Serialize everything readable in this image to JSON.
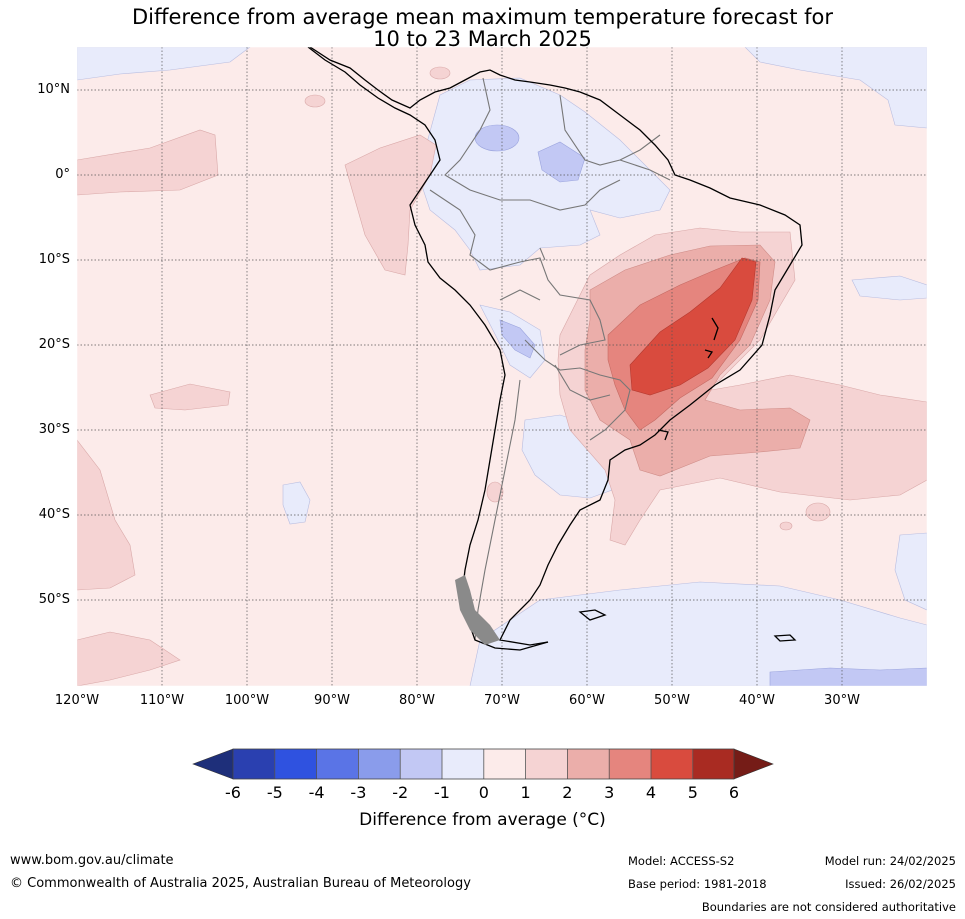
{
  "title": {
    "line1": "Difference from average mean maximum temperature forecast for",
    "line2": "10 to 23 March 2025"
  },
  "axes": {
    "lat_labels": [
      "10°N",
      "0°",
      "10°S",
      "20°S",
      "30°S",
      "40°S",
      "50°S"
    ],
    "lon_labels": [
      "120°W",
      "110°W",
      "100°W",
      "90°W",
      "80°W",
      "70°W",
      "60°W",
      "50°W",
      "40°W",
      "30°W"
    ]
  },
  "colorbar": {
    "title": "Difference from average (°C)",
    "ticks": [
      "-6",
      "-5",
      "-4",
      "-3",
      "-2",
      "-1",
      "0",
      "1",
      "2",
      "3",
      "4",
      "5",
      "6"
    ],
    "colors": [
      "#1e2f7a",
      "#2a40b0",
      "#2f52e0",
      "#5a74e6",
      "#8a9ceb",
      "#c2c8f4",
      "#e8ebfb",
      "#fcebea",
      "#f5d3d3",
      "#ebaeaa",
      "#e5857e",
      "#d94b3e",
      "#a92b22",
      "#751c17"
    ]
  },
  "footer": {
    "website": "www.bom.gov.au/climate",
    "copyright": "© Commonwealth of Australia 2025, Australian Bureau of Meteorology",
    "model": "Model: ACCESS-S2",
    "base_period": "Base period: 1981-2018",
    "model_run": "Model run: 24/02/2025",
    "issued": "Issued: 26/02/2025",
    "disclaimer": "Boundaries are not considered authoritative"
  }
}
